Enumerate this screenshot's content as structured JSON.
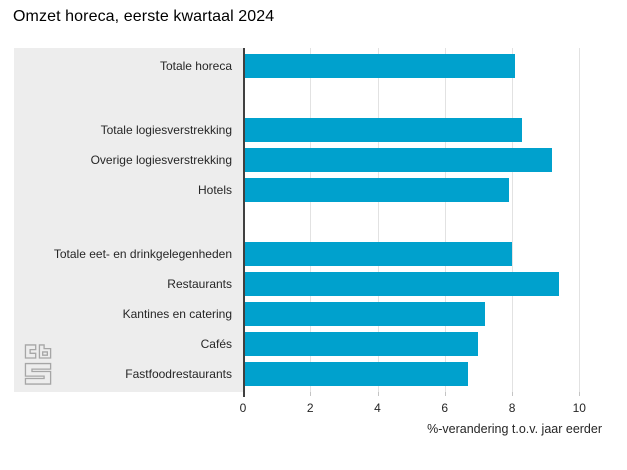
{
  "chart_data": {
    "type": "bar",
    "orientation": "horizontal",
    "title": "Omzet horeca, eerste kwartaal 2024",
    "categories": [
      "Totale horeca",
      "Totale logiesverstrekking",
      "Overige logiesverstrekking",
      "Hotels",
      "Totale eet- en drinkgelegenheden",
      "Restaurants",
      "Kantines en catering",
      "Cafés",
      "Fastfoodrestaurants"
    ],
    "values": [
      8.1,
      8.3,
      9.2,
      7.9,
      8.0,
      9.4,
      7.2,
      7.0,
      6.7
    ],
    "group_gap_after_indices": [
      0,
      3
    ],
    "xlabel": "%-verandering t.o.v. jaar eerder",
    "xlim": [
      0,
      10
    ],
    "xticks": [
      0,
      2,
      4,
      6,
      8,
      10
    ],
    "grid": true,
    "legend": "none",
    "bar_color": "#00a1cd",
    "label_panel_color": "#ededed",
    "gridline_color": "#e2e2e2",
    "axis_line_color": "#404040",
    "text_color": "#262626"
  },
  "branding": {
    "logo_name": "cbs-logo"
  }
}
